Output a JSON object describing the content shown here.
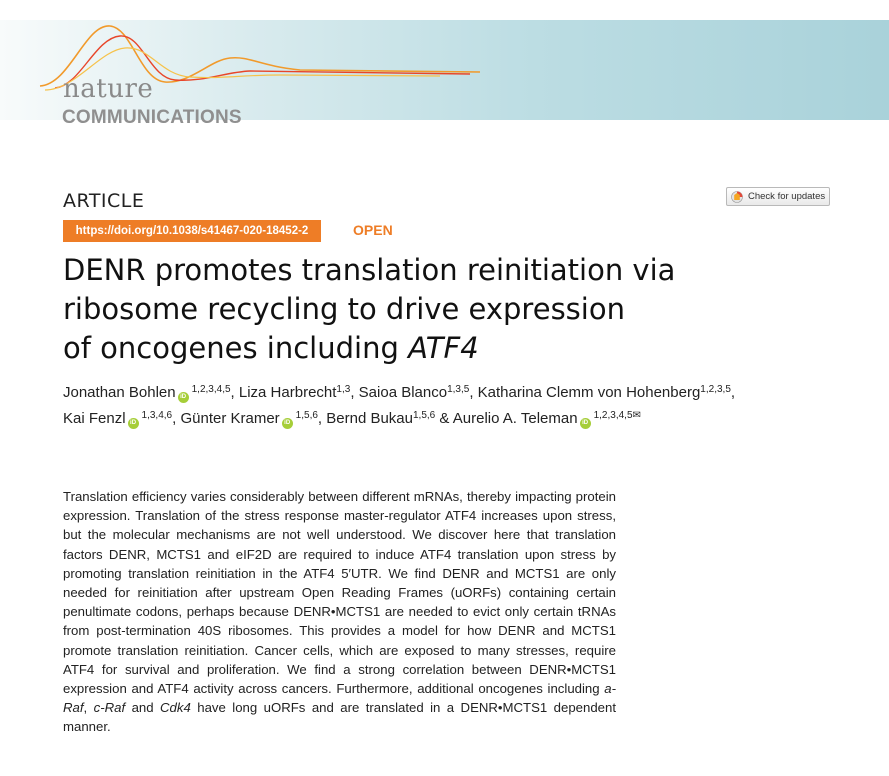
{
  "journal": {
    "logo_word1": "nature",
    "logo_word2": "COMMUNICATIONS"
  },
  "article": {
    "type_label": "ARTICLE",
    "doi": "https://doi.org/10.1038/s41467-020-18452-2",
    "access": "OPEN",
    "check_updates": "Check for updates",
    "title_line1": "DENR promotes translation reinitiation via",
    "title_line2": "ribosome recycling to drive expression",
    "title_line3_prefix": "of oncogenes including",
    "title_gene": "ATF4"
  },
  "authors": [
    {
      "name": "Jonathan Bohlen",
      "aff": "1,2,3,4,5",
      "orcid": true,
      "sep": ", "
    },
    {
      "name": "Liza Harbrecht",
      "aff": "1,3",
      "orcid": false,
      "sep": ", "
    },
    {
      "name": "Saioa Blanco",
      "aff": "1,3,5",
      "orcid": false,
      "sep": ", "
    },
    {
      "name": "Katharina Clemm von Hohenberg",
      "aff": "1,2,3,5",
      "orcid": false,
      "sep": ","
    },
    {
      "name": "Kai Fenzl",
      "aff": "1,3,4,6",
      "orcid": true,
      "sep": ", "
    },
    {
      "name": "Günter Kramer",
      "aff": "1,5,6",
      "orcid": true,
      "sep": ", "
    },
    {
      "name": "Bernd Bukau",
      "aff": "1,5,6",
      "orcid": false,
      "sep": " & "
    },
    {
      "name": "Aurelio A. Teleman",
      "aff": "1,2,3,4,5",
      "orcid": true,
      "sep": ""
    }
  ],
  "abstract": {
    "p1": "Translation efficiency varies considerably between different mRNAs, thereby impacting protein expression. Translation of the stress response master-regulator ATF4 increases upon stress, but the molecular mechanisms are not well understood. We discover here that translation factors DENR, MCTS1 and eIF2D are required to induce ATF4 translation upon stress by promoting translation reinitiation in the ATF4 5′UTR. We find DENR and MCTS1 are only needed for reinitiation after upstream Open Reading Frames (uORFs) containing certain penultimate codons, perhaps because DENR•MCTS1 are needed to evict only certain tRNAs from post-termination 40S ribosomes. This provides a model for how DENR and MCTS1 promote translation reinitiation. Cancer cells, which are exposed to many stresses, require ATF4 for survival and proliferation. We find a strong correlation between DENR•MCTS1 expression and ATF4 activity across cancers. Furthermore, additional oncogenes including ",
    "gene1": "a-Raf",
    "sep1": ", ",
    "gene2": "c-Raf",
    "sep2": " and ",
    "gene3": "Cdk4",
    "p2": " have long uORFs and are translated in a DENR•MCTS1 dependent manner."
  },
  "colors": {
    "accent_orange": "#ee7d26",
    "orcid_green": "#a6ce39",
    "header_teal": "#a9d2da"
  }
}
